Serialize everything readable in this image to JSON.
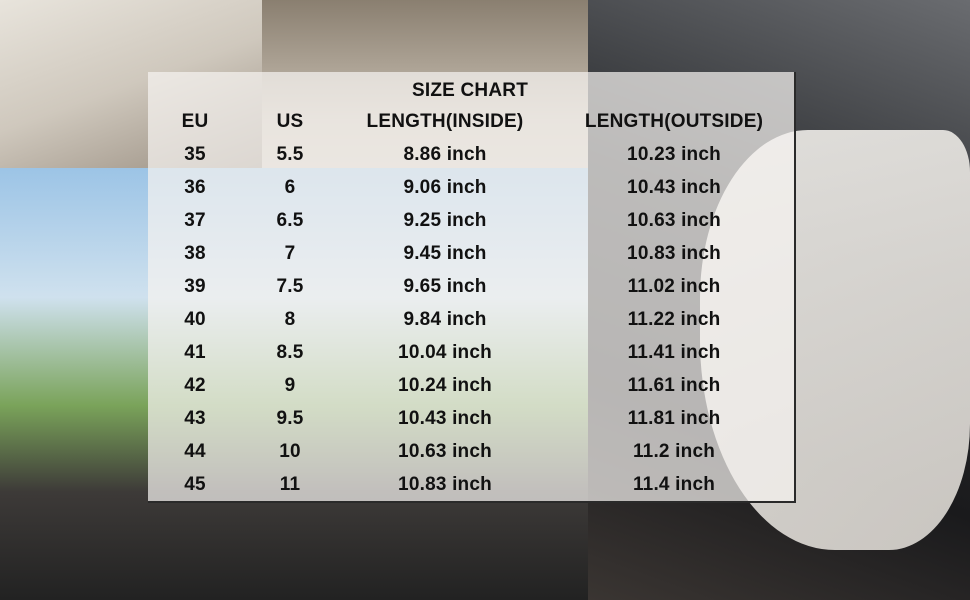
{
  "title": "SIZE CHART",
  "headers": [
    "EU",
    "US",
    "LENGTH(INSIDE)",
    "LENGTH(OUTSIDE)"
  ],
  "rows": [
    [
      "35",
      "5.5",
      "8.86 inch",
      "10.23 inch"
    ],
    [
      "36",
      "6",
      "9.06 inch",
      "10.43 inch"
    ],
    [
      "37",
      "6.5",
      "9.25 inch",
      "10.63 inch"
    ],
    [
      "38",
      "7",
      "9.45 inch",
      "10.83 inch"
    ],
    [
      "39",
      "7.5",
      "9.65 inch",
      "11.02 inch"
    ],
    [
      "40",
      "8",
      "9.84 inch",
      "11.22 inch"
    ],
    [
      "41",
      "8.5",
      "10.04 inch",
      "11.41 inch"
    ],
    [
      "42",
      "9",
      "10.24 inch",
      "11.61 inch"
    ],
    [
      "43",
      "9.5",
      "10.43 inch",
      "11.81 inch"
    ],
    [
      "44",
      "10",
      "10.63 inch",
      "11.2 inch"
    ],
    [
      "45",
      "11",
      "10.83 inch",
      "11.4 inch"
    ]
  ]
}
